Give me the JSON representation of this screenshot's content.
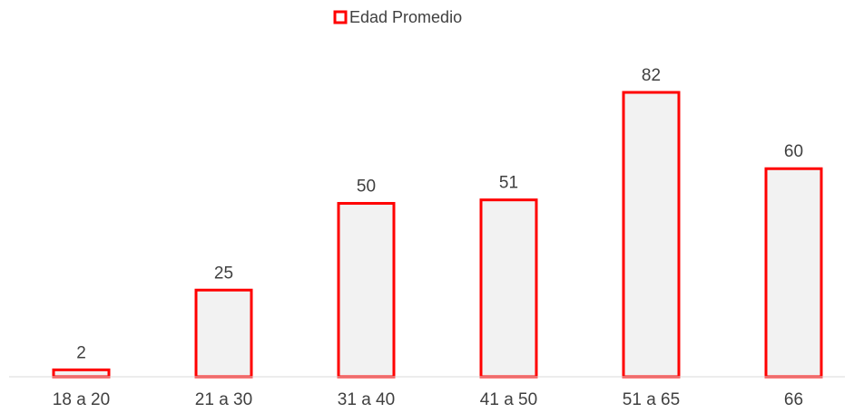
{
  "chart_data": {
    "type": "bar",
    "categories": [
      "18 a 20",
      "21 a 30",
      "31 a 40",
      "41 a 50",
      "51 a 65",
      "66"
    ],
    "series": [
      {
        "name": "Edad Promedio",
        "values": [
          2,
          25,
          50,
          51,
          82,
          60
        ]
      }
    ],
    "title": "",
    "xlabel": "",
    "ylabel": "",
    "ylim": [
      0,
      82
    ],
    "grid": false,
    "legend_position": "top-center",
    "bar_fill": "#f2f2f2",
    "bar_stroke": "#ff0000",
    "axis_color": "#d9d9d9",
    "text_color": "#404040"
  }
}
